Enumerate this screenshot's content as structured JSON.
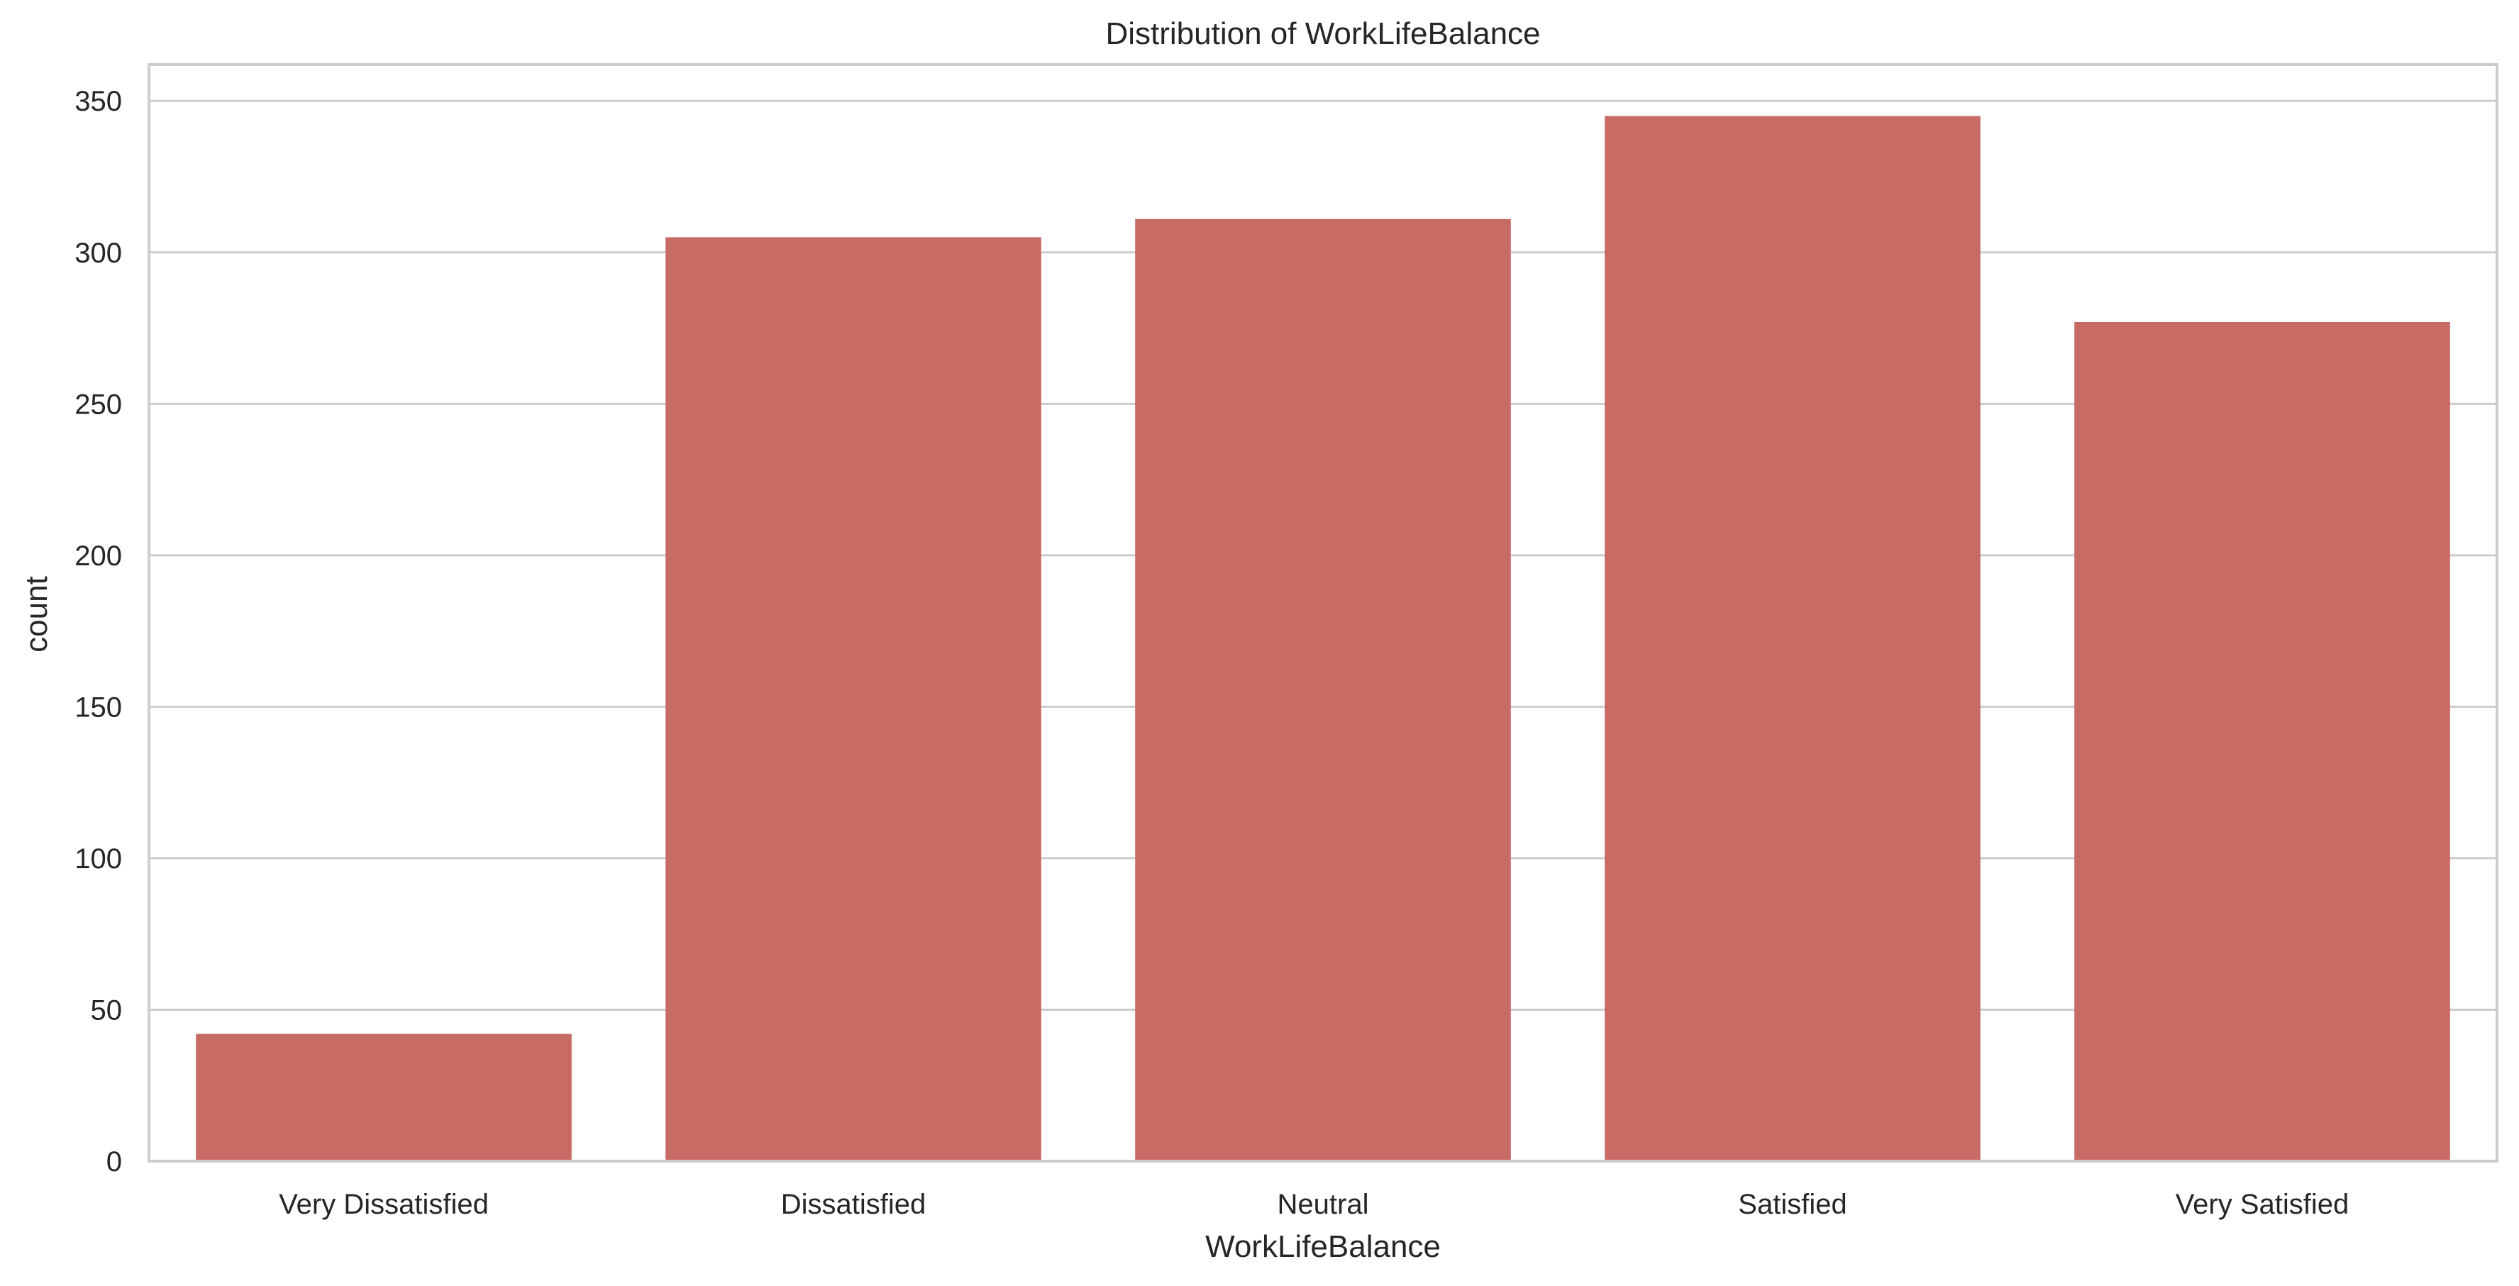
{
  "chart_data": {
    "type": "bar",
    "title": "Distribution of WorkLifeBalance",
    "xlabel": "WorkLifeBalance",
    "ylabel": "count",
    "categories": [
      "Very Dissatisfied",
      "Dissatisfied",
      "Neutral",
      "Satisfied",
      "Very Satisfied"
    ],
    "values": [
      42,
      305,
      311,
      345,
      277
    ],
    "ylim": [
      0,
      362
    ],
    "yticks": [
      0,
      50,
      100,
      150,
      200,
      250,
      300,
      350
    ],
    "grid": true,
    "bar_color": "#c96b65"
  }
}
